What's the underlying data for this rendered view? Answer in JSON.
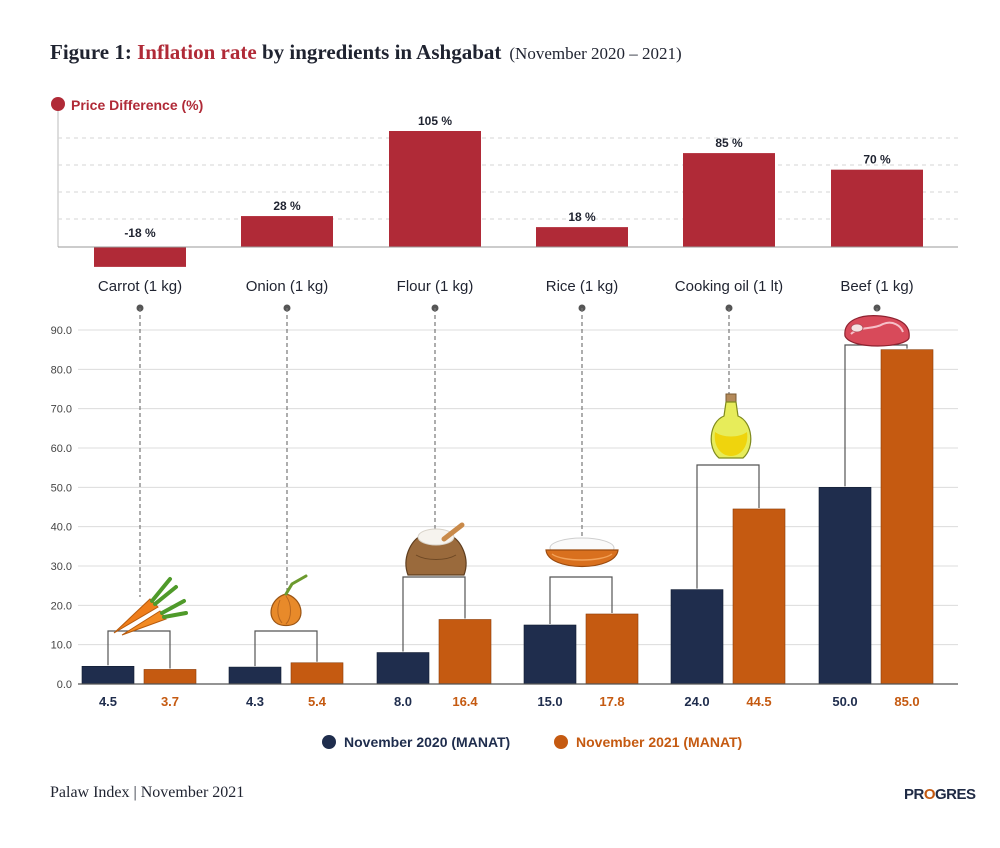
{
  "title": {
    "prefix": "Figure 1: ",
    "highlight": "Inflation rate",
    "rest": " by ingredients in Ashgabat",
    "period": "(November 2020 – 2021)"
  },
  "footer": {
    "source": "Palaw Index | November 2021",
    "logo_a": "PR",
    "logo_o": "O",
    "logo_b": "GRES"
  },
  "colors": {
    "diff": "#b02a37",
    "nov2020": "#1f2d4d",
    "nov2021": "#c55a11"
  },
  "chart_data": [
    {
      "type": "bar",
      "ylabel": "Price Difference (%)",
      "categories": [
        "Carrot (1 kg)",
        "Onion (1 kg)",
        "Flour (1 kg)",
        "Rice (1 kg)",
        "Cooking oil (1 lt)",
        "Beef (1 kg)"
      ],
      "values": [
        -18,
        28,
        105,
        18,
        85,
        70
      ],
      "data_labels": [
        "-18 %",
        "28 %",
        "105 %",
        "18 %",
        "85 %",
        "70 %"
      ],
      "ylim": [
        -18,
        105
      ],
      "grid": true
    },
    {
      "type": "bar",
      "categories": [
        "Carrot (1 kg)",
        "Onion (1 kg)",
        "Flour (1 kg)",
        "Rice (1 kg)",
        "Cooking oil (1 lt)",
        "Beef (1 kg)"
      ],
      "series": [
        {
          "name": "November 2020 (MANAT)",
          "values": [
            4.5,
            4.3,
            8.0,
            15.0,
            24.0,
            50.0
          ],
          "labels": [
            "4.5",
            "4.3",
            "8.0",
            "15.0",
            "24.0",
            "50.0"
          ]
        },
        {
          "name": "November 2021 (MANAT)",
          "values": [
            3.7,
            5.4,
            16.4,
            17.8,
            44.5,
            85.0
          ],
          "labels": [
            "3.7",
            "5.4",
            "16.4",
            "17.8",
            "44.5",
            "85.0"
          ]
        }
      ],
      "yticks": [
        "0.0",
        "10.0",
        "20.0",
        "30.0",
        "40.0",
        "50.0",
        "60.0",
        "70.0",
        "80.0",
        "90.0"
      ],
      "ylim": [
        0,
        90
      ],
      "grid": true,
      "legend": "bottom",
      "icons": [
        "carrot-icon",
        "onion-icon",
        "flour-sack-icon",
        "rice-bowl-icon",
        "oil-bottle-icon",
        "beef-steak-icon"
      ]
    }
  ]
}
